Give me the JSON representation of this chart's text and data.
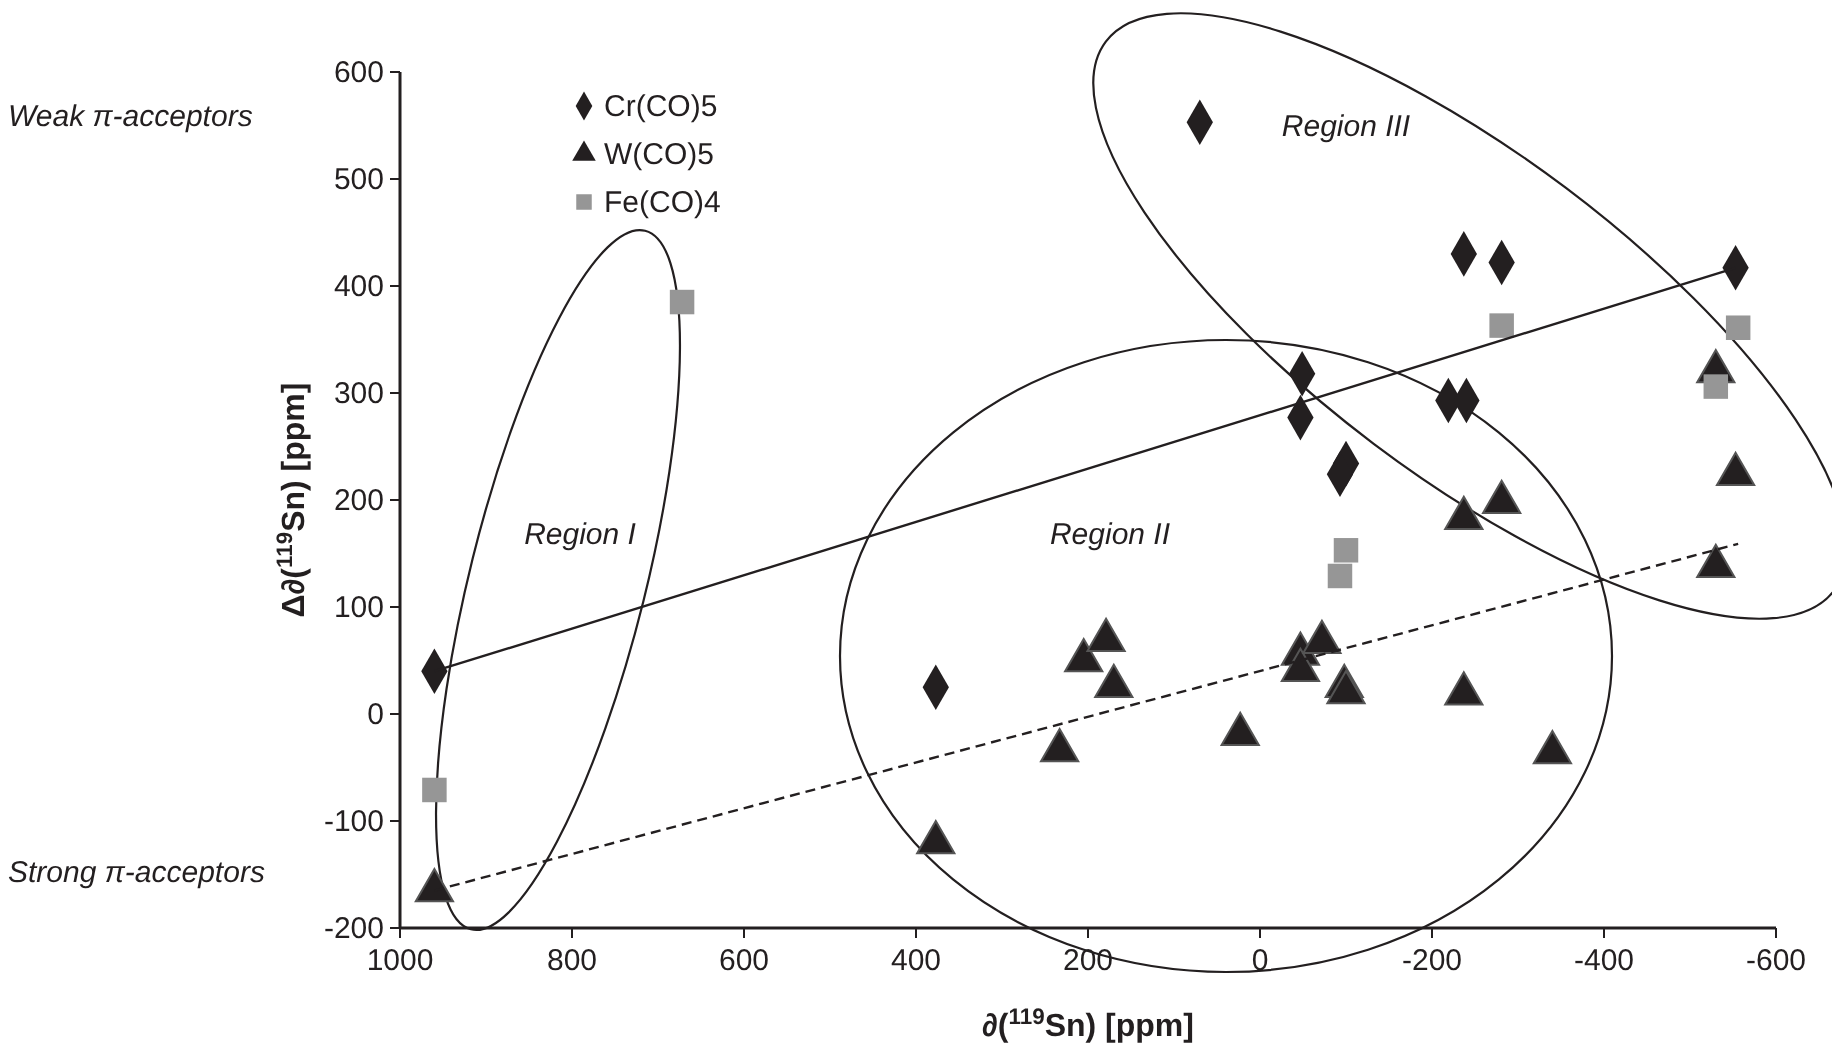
{
  "chart_data": {
    "type": "scatter",
    "xlabel": "∂($^{119}$Sn) [ppm]",
    "ylabel": "Δ∂($^{119}$Sn) [ppm]",
    "xlim": [
      1000,
      -600
    ],
    "xticks": [
      1000,
      800,
      600,
      400,
      200,
      0,
      -200,
      -400,
      -600
    ],
    "ylim": [
      -200,
      600
    ],
    "yticks": [
      -200,
      -100,
      0,
      100,
      200,
      300,
      400,
      500,
      600
    ],
    "grid": false,
    "legend": "top",
    "series": [
      {
        "name": "Cr(CO)5",
        "marker": "diamond",
        "color": "#231f20",
        "x": [
          960,
          377,
          70,
          -237,
          -281,
          -553,
          -49,
          -47,
          -219,
          -240,
          -100,
          -93
        ],
        "values": [
          40,
          25,
          553,
          430,
          422,
          417,
          318,
          277,
          293,
          293,
          234,
          224
        ]
      },
      {
        "name": "W(CO)5",
        "marker": "triangle",
        "color": "#231f20",
        "x": [
          960,
          377,
          233,
          205,
          179,
          170,
          23,
          -47,
          -47,
          -72,
          -98,
          -100,
          -237,
          -340,
          -530,
          -237,
          -281,
          -553,
          -530
        ],
        "values": [
          -165,
          -120,
          -34,
          50,
          69,
          26,
          -19,
          56,
          41,
          67,
          26,
          20,
          19,
          -36,
          138,
          183,
          198,
          224,
          320
        ]
      },
      {
        "name": "Fe(CO)4",
        "marker": "square",
        "color": "#969696",
        "x": [
          672,
          960,
          -281,
          -556,
          -530,
          -100,
          -93
        ],
        "values": [
          385,
          -71,
          363,
          361,
          306,
          153,
          129
        ]
      },
      {
        "type": "line",
        "line_style": "solid",
        "color": "#231f20",
        "x": [
          960,
          -553
        ],
        "values": [
          40,
          417
        ]
      },
      {
        "type": "line",
        "line_style": "dashed",
        "color": "#231f20",
        "x": [
          960,
          -556
        ],
        "values": [
          -165,
          159
        ]
      }
    ],
    "annotations": [
      "Weak π-acceptors",
      "Strong π-acceptors",
      "Region I",
      "Region II",
      "Region III"
    ]
  }
}
